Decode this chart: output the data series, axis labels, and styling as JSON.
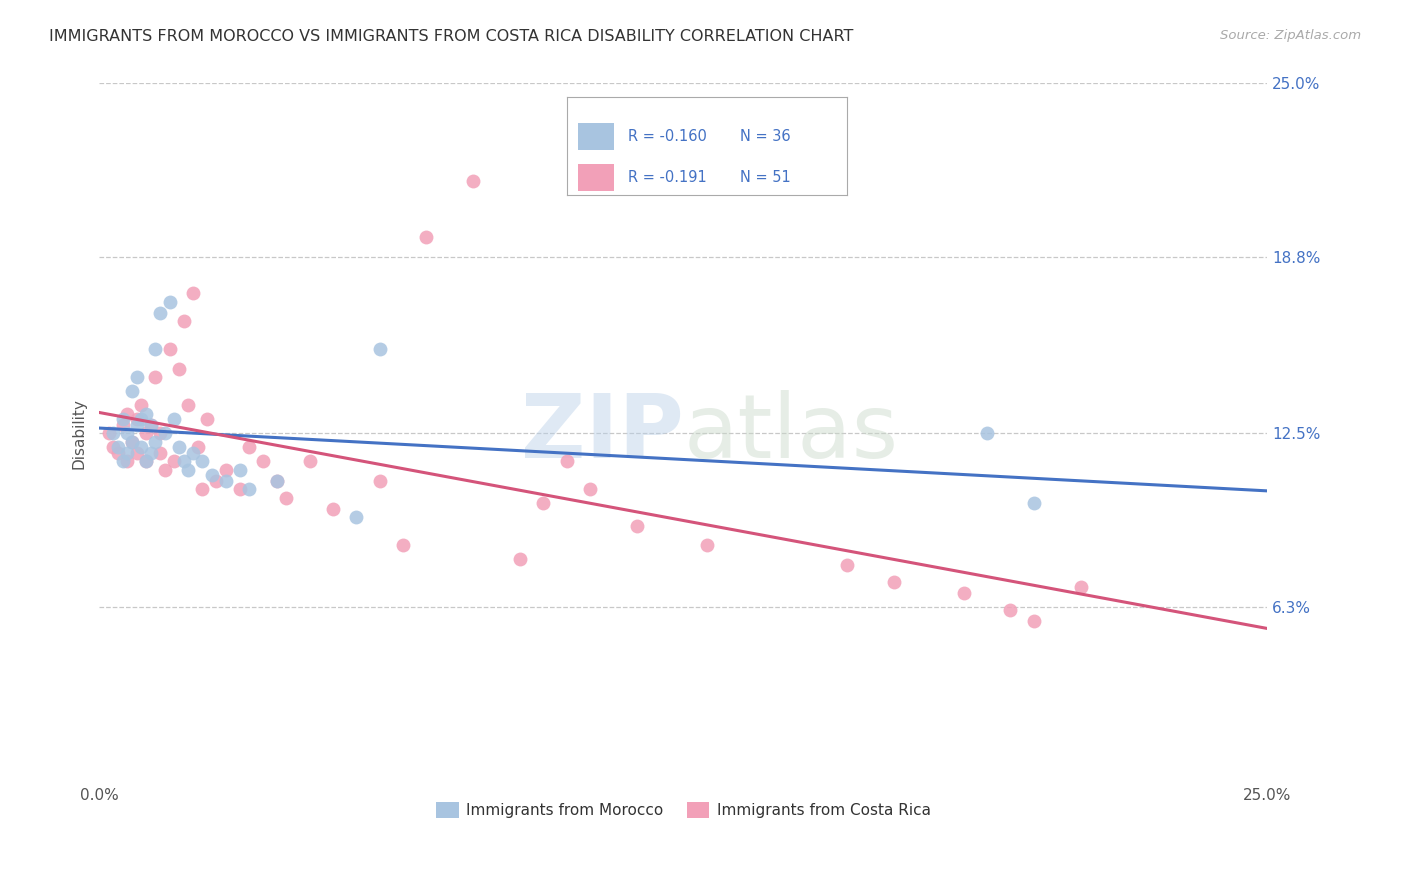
{
  "title": "IMMIGRANTS FROM MOROCCO VS IMMIGRANTS FROM COSTA RICA DISABILITY CORRELATION CHART",
  "source": "Source: ZipAtlas.com",
  "ylabel": "Disability",
  "xlim": [
    0.0,
    0.25
  ],
  "ylim": [
    0.0,
    0.25
  ],
  "watermark": "ZIPatlas",
  "legend_r1": " -0.160",
  "legend_n1": "36",
  "legend_r2": " -0.191",
  "legend_n2": "51",
  "color_morocco": "#a8c4e0",
  "color_costarica": "#f2a0b8",
  "trendline_color_morocco": "#4472c4",
  "trendline_color_costarica": "#d4547a",
  "background_color": "#ffffff",
  "grid_color": "#c8c8c8",
  "morocco_x": [
    0.003,
    0.004,
    0.005,
    0.005,
    0.006,
    0.006,
    0.007,
    0.007,
    0.008,
    0.008,
    0.009,
    0.009,
    0.01,
    0.01,
    0.011,
    0.011,
    0.012,
    0.012,
    0.013,
    0.014,
    0.015,
    0.016,
    0.017,
    0.018,
    0.019,
    0.02,
    0.022,
    0.024,
    0.027,
    0.03,
    0.032,
    0.038,
    0.055,
    0.06,
    0.19,
    0.2
  ],
  "morocco_y": [
    0.125,
    0.12,
    0.13,
    0.115,
    0.118,
    0.125,
    0.14,
    0.122,
    0.145,
    0.128,
    0.13,
    0.12,
    0.132,
    0.115,
    0.128,
    0.118,
    0.155,
    0.122,
    0.168,
    0.125,
    0.172,
    0.13,
    0.12,
    0.115,
    0.112,
    0.118,
    0.115,
    0.11,
    0.108,
    0.112,
    0.105,
    0.108,
    0.095,
    0.155,
    0.125,
    0.1
  ],
  "costarica_x": [
    0.002,
    0.003,
    0.004,
    0.005,
    0.006,
    0.006,
    0.007,
    0.008,
    0.008,
    0.009,
    0.01,
    0.01,
    0.011,
    0.012,
    0.013,
    0.013,
    0.014,
    0.015,
    0.016,
    0.017,
    0.018,
    0.019,
    0.02,
    0.021,
    0.022,
    0.023,
    0.025,
    0.027,
    0.03,
    0.032,
    0.035,
    0.038,
    0.04,
    0.045,
    0.05,
    0.06,
    0.065,
    0.07,
    0.08,
    0.09,
    0.095,
    0.1,
    0.105,
    0.115,
    0.13,
    0.16,
    0.17,
    0.185,
    0.195,
    0.2,
    0.21
  ],
  "costarica_y": [
    0.125,
    0.12,
    0.118,
    0.128,
    0.132,
    0.115,
    0.122,
    0.13,
    0.118,
    0.135,
    0.125,
    0.115,
    0.128,
    0.145,
    0.118,
    0.125,
    0.112,
    0.155,
    0.115,
    0.148,
    0.165,
    0.135,
    0.175,
    0.12,
    0.105,
    0.13,
    0.108,
    0.112,
    0.105,
    0.12,
    0.115,
    0.108,
    0.102,
    0.115,
    0.098,
    0.108,
    0.085,
    0.195,
    0.215,
    0.08,
    0.1,
    0.115,
    0.105,
    0.092,
    0.085,
    0.078,
    0.072,
    0.068,
    0.062,
    0.058,
    0.07
  ]
}
